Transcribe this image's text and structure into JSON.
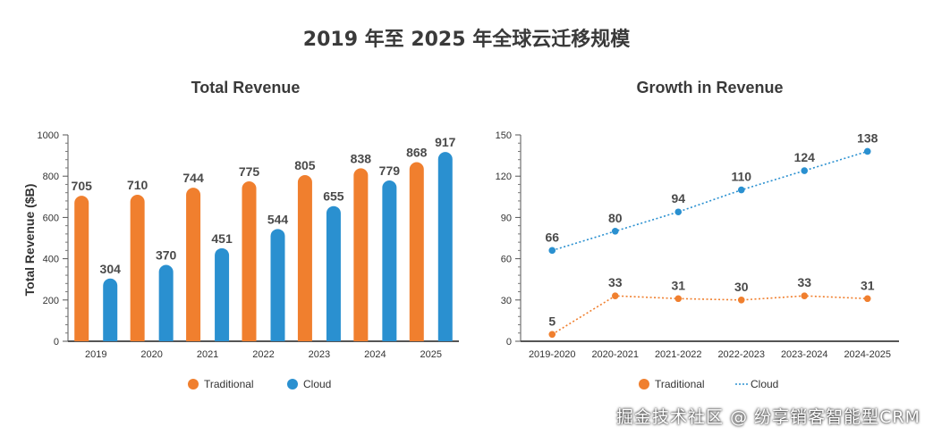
{
  "page_title": "2019 年至 2025 年全球云迁移规模",
  "watermark": "掘金技术社区 @ 纷享销客智能型CRM",
  "colors": {
    "traditional": "#F07F2E",
    "cloud": "#2A90D0"
  },
  "chart_data": [
    {
      "type": "bar",
      "title": "Total Revenue",
      "xlabel": "",
      "ylabel": "Total Revenue ($B)",
      "ylim": [
        0,
        1000
      ],
      "yticks": [
        "0",
        "200",
        "400",
        "600",
        "800",
        "1000"
      ],
      "categories": [
        "2019",
        "2020",
        "2021",
        "2022",
        "2023",
        "2024",
        "2025"
      ],
      "series": [
        {
          "name": "Traditional",
          "values": [
            705,
            710,
            744,
            775,
            805,
            838,
            868
          ]
        },
        {
          "name": "Cloud",
          "values": [
            304,
            370,
            451,
            544,
            655,
            779,
            917
          ]
        }
      ],
      "legend": [
        "Traditional",
        "Cloud"
      ],
      "legend_position": "bottom"
    },
    {
      "type": "line",
      "title": "Growth in Revenue",
      "xlabel": "",
      "ylabel": "",
      "ylim": [
        0,
        150
      ],
      "yticks": [
        "0",
        "30",
        "60",
        "90",
        "120",
        "150"
      ],
      "categories": [
        "2019-2020",
        "2020-2021",
        "2021-2022",
        "2022-2023",
        "2023-2024",
        "2024-2025"
      ],
      "series": [
        {
          "name": "Traditional",
          "values": [
            5,
            33,
            31,
            30,
            33,
            31
          ]
        },
        {
          "name": "Cloud",
          "values": [
            66,
            80,
            94,
            110,
            124,
            138
          ]
        }
      ],
      "legend": [
        "Traditional",
        "Cloud"
      ],
      "legend_position": "bottom"
    }
  ]
}
